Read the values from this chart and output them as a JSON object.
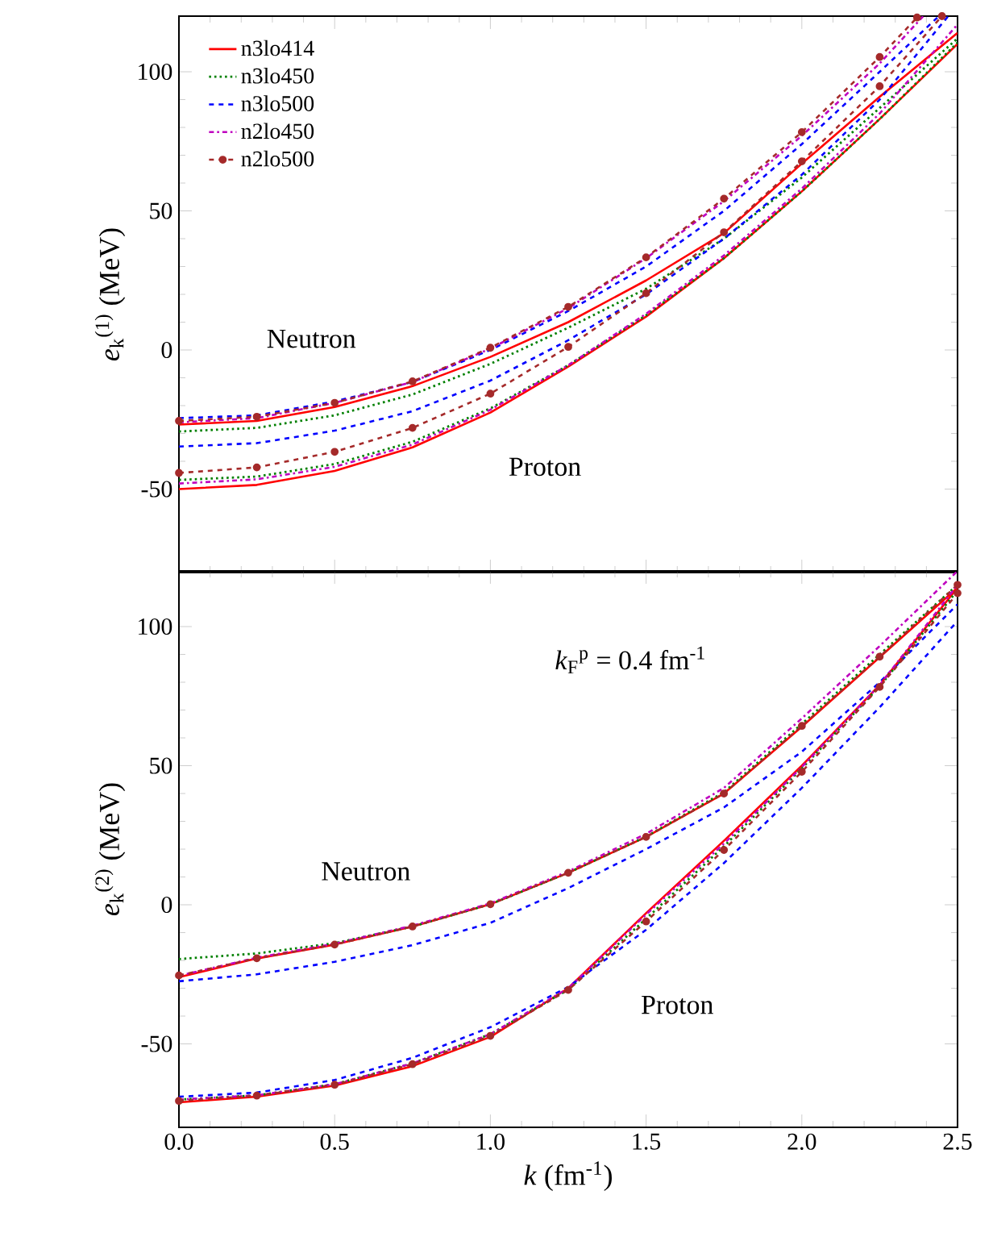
{
  "chart_data": [
    {
      "type": "line",
      "ylabel": "*e*$_{k}$$^{(1)}$ (MeV)",
      "x": [
        0,
        0.25,
        0.5,
        0.75,
        1.0,
        1.25,
        1.5,
        1.75,
        2.0,
        2.25,
        2.5
      ],
      "xlim": [
        0,
        2.5
      ],
      "xticks": [
        0,
        0.5,
        1,
        1.5,
        2,
        2.5
      ],
      "ylim": [
        -80,
        120
      ],
      "yticks": [
        -50,
        0,
        50,
        100
      ],
      "tick_labels": "y",
      "legend": "top left",
      "annotations": [
        "Neutron",
        "Proton"
      ],
      "series": [
        {
          "name": "n3lo414",
          "color": "#ff0000",
          "line_style": "solid",
          "marker": "none",
          "values": [
            -26.8,
            -25.5,
            -20.5,
            -13,
            -2.5,
            10,
            25,
            42,
            67,
            91,
            114
          ]
        },
        {
          "name": "n3lo450",
          "color": "#008000",
          "line_style": "dotted",
          "marker": "none",
          "values": [
            -29.3,
            -28,
            -23.5,
            -16,
            -5,
            8,
            22,
            40,
            62,
            87,
            112
          ]
        },
        {
          "name": "n3lo500",
          "color": "#0000ff",
          "line_style": "dashed",
          "marker": "none",
          "x": [
            0,
            0.25,
            0.5,
            0.75,
            1.0,
            1.25,
            1.5,
            1.75,
            2.0,
            2.25,
            2.44
          ],
          "values": [
            -24.5,
            -23.5,
            -18.5,
            -11.5,
            0,
            14,
            30,
            50,
            74,
            100,
            120
          ]
        },
        {
          "name": "n2lo450",
          "color": "#bf00bf",
          "line_style": "dashdot",
          "marker": "none",
          "x": [
            0,
            0.25,
            0.5,
            0.75,
            1.0,
            1.25,
            1.5,
            1.75,
            2.0,
            2.25,
            2.39
          ],
          "values": [
            -26,
            -24.5,
            -19,
            -11.5,
            0.5,
            15,
            33,
            53.5,
            77,
            103,
            120
          ]
        },
        {
          "name": "n2lo500",
          "color": "#a52a2a",
          "line_style": "dashed",
          "marker": "circle",
          "x": [
            0,
            0.25,
            0.5,
            0.75,
            1.0,
            1.25,
            1.5,
            1.75,
            2.0,
            2.25,
            2.37
          ],
          "values": [
            -25.5,
            -24,
            -19,
            -11.3,
            0.8,
            15.5,
            33.3,
            54.4,
            78.3,
            105.3,
            119.5
          ]
        },
        {
          "color": "#ff0000",
          "line_style": "solid",
          "marker": "none",
          "values": [
            -50,
            -48.5,
            -43.5,
            -35,
            -22.5,
            -6,
            12,
            33,
            57,
            83,
            110
          ]
        },
        {
          "color": "#008000",
          "line_style": "dotted",
          "marker": "none",
          "values": [
            -46.7,
            -45.5,
            -41,
            -33,
            -21,
            -5.5,
            12.5,
            33,
            57,
            83,
            110.5
          ]
        },
        {
          "color": "#0000ff",
          "line_style": "dashed",
          "marker": "none",
          "x": [
            0,
            0.25,
            0.5,
            0.75,
            1.0,
            1.25,
            1.5,
            1.75,
            2.0,
            2.25,
            2.47
          ],
          "values": [
            -34.7,
            -33.5,
            -29,
            -22,
            -11,
            3.5,
            20,
            40,
            63,
            90,
            120
          ]
        },
        {
          "color": "#bf00bf",
          "line_style": "dashdot",
          "marker": "none",
          "values": [
            -48,
            -46.5,
            -42,
            -34,
            -21.5,
            -5.5,
            13,
            34,
            58,
            85,
            117
          ]
        },
        {
          "color": "#a52a2a",
          "line_style": "dashed",
          "marker": "circle",
          "x": [
            0,
            0.25,
            0.5,
            0.75,
            1.0,
            1.25,
            1.5,
            1.75,
            2.0,
            2.25,
            2.45
          ],
          "values": [
            -44.2,
            -42.2,
            -36.6,
            -28,
            -15.7,
            1.1,
            20.4,
            42.3,
            67.8,
            94.8,
            120
          ]
        }
      ]
    },
    {
      "type": "line",
      "xlabel": "*k* (fm$^{-1}$)",
      "ylabel": "*e*$_{k}$$^{(2)}$ (MeV)",
      "x": [
        0,
        0.25,
        0.5,
        0.75,
        1.0,
        1.25,
        1.5,
        1.75,
        2.0,
        2.25,
        2.5
      ],
      "xlim": [
        0,
        2.5
      ],
      "xticks": [
        {
          "value": 0,
          "label": "0.0"
        },
        0.5,
        {
          "value": 1,
          "label": "1.0"
        },
        1.5,
        {
          "value": 2,
          "label": "2.0"
        },
        2.5
      ],
      "ylim": [
        -80,
        120
      ],
      "yticks": [
        -50,
        0,
        50,
        100
      ],
      "annotations": [
        "*k*$_{F}$$^{p}$ = 0.4 fm$^{-1}$",
        "Neutron",
        "Proton"
      ],
      "series": [
        {
          "color": "#ff0000",
          "line_style": "solid",
          "marker": "none",
          "values": [
            -26,
            -19.3,
            -14.3,
            -7.8,
            0.2,
            11.5,
            24.4,
            40,
            64,
            89,
            114
          ]
        },
        {
          "color": "#008000",
          "line_style": "dotted",
          "marker": "none",
          "values": [
            -19.5,
            -17.5,
            -13.8,
            -7.8,
            0.2,
            11.5,
            24.5,
            40.5,
            65,
            90,
            115
          ]
        },
        {
          "color": "#0000ff",
          "line_style": "dashed",
          "marker": "none",
          "values": [
            -27.5,
            -25,
            -20.5,
            -14.5,
            -6.5,
            6,
            20,
            35,
            55,
            80,
            108
          ]
        },
        {
          "color": "#bf00bf",
          "line_style": "dashdot",
          "marker": "none",
          "values": [
            -25.5,
            -19,
            -14,
            -7.5,
            0.5,
            12,
            25.5,
            42,
            67,
            93,
            120
          ]
        },
        {
          "color": "#a52a2a",
          "line_style": "dashed",
          "marker": "circle",
          "values": [
            -25.4,
            -19.2,
            -14.3,
            -7.8,
            0.2,
            11.5,
            24.4,
            40,
            64.3,
            89.2,
            115
          ]
        },
        {
          "color": "#ff0000",
          "line_style": "solid",
          "marker": "none",
          "values": [
            -71,
            -69,
            -65,
            -58,
            -47.5,
            -30,
            -3,
            23,
            50,
            79,
            114
          ]
        },
        {
          "color": "#008000",
          "line_style": "dotted",
          "marker": "none",
          "values": [
            -70,
            -68.5,
            -64.5,
            -57,
            -46.5,
            -30.5,
            -5,
            21,
            49,
            78.5,
            113
          ]
        },
        {
          "color": "#0000ff",
          "line_style": "dashed",
          "marker": "none",
          "values": [
            -69,
            -67.5,
            -63,
            -55,
            -44,
            -29.5,
            -9,
            15,
            42,
            71,
            102
          ]
        },
        {
          "color": "#bf00bf",
          "line_style": "dashdot",
          "marker": "none",
          "values": [
            -70,
            -68.5,
            -64.5,
            -57,
            -46.5,
            -30,
            -3.5,
            22,
            49.5,
            79,
            115
          ]
        },
        {
          "color": "#a52a2a",
          "line_style": "dashed",
          "marker": "circle",
          "values": [
            -70.5,
            -68.6,
            -64.7,
            -57.3,
            -47.1,
            -30.6,
            -6,
            19.7,
            47.8,
            78.3,
            112
          ]
        }
      ]
    }
  ]
}
